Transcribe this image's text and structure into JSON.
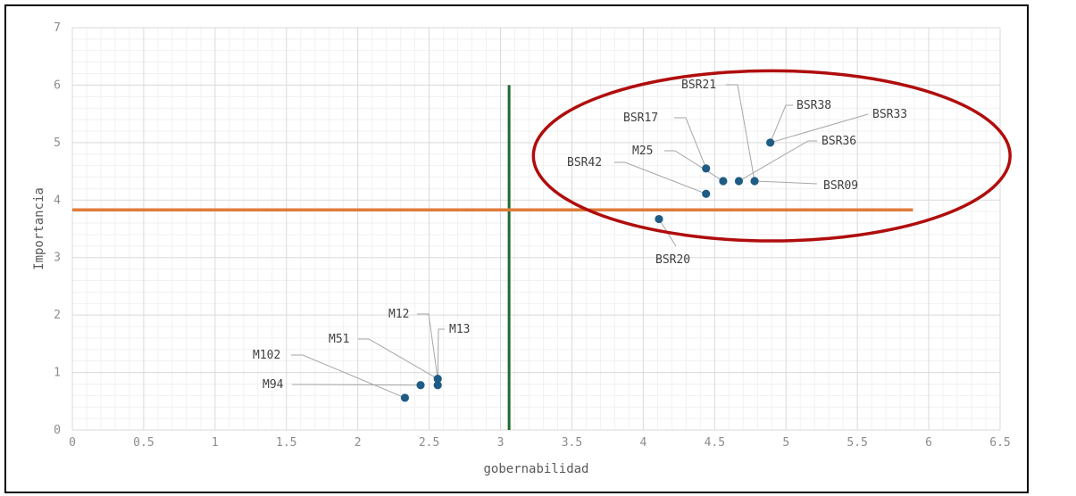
{
  "chart_data": {
    "type": "scatter",
    "xlabel": "gobernabilidad",
    "ylabel": "Importancia",
    "xlim": [
      0,
      6.5
    ],
    "ylim": [
      0,
      7
    ],
    "x_ticks": [
      "0",
      "0.5",
      "1",
      "1.5",
      "2",
      "2.5",
      "3",
      "3.5",
      "4",
      "4.5",
      "5",
      "5.5",
      "6",
      "6.5"
    ],
    "y_ticks": [
      "0",
      "1",
      "2",
      "3",
      "4",
      "5",
      "6",
      "7"
    ],
    "grid": true,
    "points": [
      {
        "label": "BSR21",
        "x": 4.78,
        "y": 4.33
      },
      {
        "label": "BSR38",
        "x": 4.89,
        "y": 5.0
      },
      {
        "label": "BSR33",
        "x": 4.89,
        "y": 5.0
      },
      {
        "label": "BSR17",
        "x": 4.44,
        "y": 4.55
      },
      {
        "label": "M25",
        "x": 4.56,
        "y": 4.33
      },
      {
        "label": "BSR36",
        "x": 4.67,
        "y": 4.33
      },
      {
        "label": "BSR42",
        "x": 4.44,
        "y": 4.11
      },
      {
        "label": "BSR09",
        "x": 4.78,
        "y": 4.33
      },
      {
        "label": "BSR20",
        "x": 4.11,
        "y": 3.67
      },
      {
        "label": "M12",
        "x": 2.56,
        "y": 0.89
      },
      {
        "label": "M13",
        "x": 2.56,
        "y": 0.78
      },
      {
        "label": "M51",
        "x": 2.56,
        "y": 0.89
      },
      {
        "label": "M102",
        "x": 2.33,
        "y": 0.56
      },
      {
        "label": "M94",
        "x": 2.44,
        "y": 0.78
      }
    ],
    "reference_lines": [
      {
        "orientation": "vertical",
        "x": 3.06,
        "y_from": 0,
        "y_to": 6,
        "color": "#1e6b2a"
      },
      {
        "orientation": "horizontal",
        "y": 3.83,
        "x_from": 0,
        "x_to": 5.89,
        "color": "#e07b39"
      }
    ],
    "highlight_ellipse": {
      "cx": 4.9,
      "cy": 4.77,
      "rx": 1.67,
      "ry": 1.48,
      "color": "#b00d0d"
    },
    "marker_color": "#1f5c85"
  }
}
